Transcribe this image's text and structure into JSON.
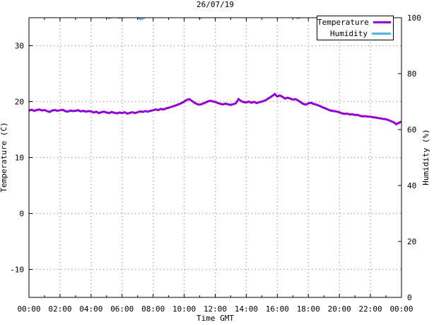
{
  "title": "26/07/19",
  "xlabel": "Time GMT",
  "ylabel_left": "Temperature (C)",
  "ylabel_right": "Humidity (%)",
  "legend": {
    "items": [
      {
        "label": "Temperature",
        "color": "#9400d3"
      },
      {
        "label": "Humidity",
        "color": "#56b4e9"
      }
    ]
  },
  "colors": {
    "temperature": "#9400d3",
    "humidity": "#56b4e9",
    "grid": "#ababab",
    "border": "#000000",
    "text": "#000000",
    "background": "#ffffff"
  },
  "chart_data": {
    "type": "line",
    "title": "26/07/19",
    "xlabel": "Time GMT",
    "x_range_hours": [
      0,
      24
    ],
    "x_major_tick_hours": 2,
    "x_minor_tick_hours": 1,
    "x_tick_labels": [
      "00:00",
      "02:00",
      "04:00",
      "06:00",
      "08:00",
      "10:00",
      "12:00",
      "14:00",
      "16:00",
      "18:00",
      "20:00",
      "22:00",
      "00:00"
    ],
    "grid": "dotted gray at x major ticks and left-axis ticks",
    "legend_position": "top-right inside plot, boxed",
    "left_axis": {
      "label": "Temperature (C)",
      "range": [
        -15,
        35
      ],
      "ticks": [
        -10,
        0,
        10,
        20,
        30
      ]
    },
    "right_axis": {
      "label": "Humidity (%)",
      "range": [
        0,
        100
      ],
      "ticks": [
        0,
        20,
        40,
        60,
        80,
        100
      ]
    },
    "series": [
      {
        "name": "Temperature",
        "axis": "left",
        "color": "#9400d3",
        "x_start_hours": 0,
        "x_step_hours": 0.166667,
        "values": [
          18.4,
          18.55,
          18.35,
          18.5,
          18.6,
          18.4,
          18.5,
          18.3,
          18.15,
          18.4,
          18.5,
          18.35,
          18.45,
          18.55,
          18.3,
          18.2,
          18.4,
          18.3,
          18.35,
          18.45,
          18.25,
          18.35,
          18.2,
          18.3,
          18.25,
          18.05,
          18.2,
          17.95,
          18.1,
          18.2,
          18.05,
          17.95,
          18.15,
          18.0,
          17.9,
          18.05,
          17.95,
          18.1,
          17.85,
          18.0,
          18.1,
          17.95,
          18.1,
          18.25,
          18.15,
          18.3,
          18.2,
          18.35,
          18.45,
          18.6,
          18.5,
          18.7,
          18.6,
          18.8,
          18.9,
          19.05,
          19.2,
          19.35,
          19.55,
          19.75,
          20.0,
          20.3,
          20.45,
          20.1,
          19.8,
          19.55,
          19.45,
          19.6,
          19.8,
          20.0,
          20.15,
          20.05,
          19.95,
          19.75,
          19.6,
          19.5,
          19.65,
          19.5,
          19.4,
          19.55,
          19.7,
          20.45,
          20.1,
          19.9,
          19.85,
          20.0,
          19.8,
          19.95,
          19.75,
          19.9,
          20.0,
          20.15,
          20.4,
          20.7,
          21.0,
          21.35,
          20.9,
          21.1,
          20.85,
          20.55,
          20.7,
          20.55,
          20.35,
          20.45,
          20.2,
          19.9,
          19.6,
          19.45,
          19.7,
          19.8,
          19.6,
          19.45,
          19.3,
          19.1,
          18.9,
          18.7,
          18.5,
          18.35,
          18.3,
          18.2,
          18.1,
          17.9,
          17.8,
          17.85,
          17.7,
          17.75,
          17.6,
          17.65,
          17.45,
          17.35,
          17.4,
          17.3,
          17.3,
          17.2,
          17.15,
          17.05,
          17.0,
          16.9,
          16.85,
          16.7,
          16.5,
          16.3,
          15.95,
          16.2,
          16.4
        ]
      },
      {
        "name": "Humidity",
        "axis": "right",
        "color": "#56b4e9",
        "x_start_hours": 0,
        "x_step_hours": 0.166667,
        "values": [
          100,
          100,
          100,
          100,
          100,
          100,
          100,
          100,
          100,
          100,
          100,
          100,
          100,
          100,
          100,
          100,
          100,
          100,
          100,
          100,
          100,
          100,
          100,
          100,
          100,
          100,
          100,
          100,
          100,
          100,
          100,
          99.6,
          100,
          100,
          100,
          99.7,
          100,
          100,
          100,
          100,
          100,
          100,
          100,
          99.2,
          99.5,
          100,
          100,
          100,
          100,
          100,
          100,
          100,
          100,
          100,
          100,
          100,
          100,
          100,
          100,
          100,
          100,
          100,
          100,
          100,
          100,
          100,
          99.7,
          100,
          100,
          100,
          100,
          100,
          100,
          100,
          100,
          100,
          100,
          100,
          100,
          100,
          100,
          100,
          100,
          100,
          100,
          100,
          100,
          100,
          100,
          100,
          100,
          100,
          100,
          100,
          100,
          100,
          100,
          100,
          100,
          100,
          100,
          100,
          100,
          100,
          99.6,
          100,
          100,
          100,
          100,
          100,
          100,
          100,
          100,
          100,
          100,
          100,
          100,
          100,
          100,
          100,
          100,
          100,
          100,
          100,
          100,
          100,
          100,
          100,
          100,
          100,
          100,
          100,
          100,
          99.7,
          100,
          100,
          100,
          100,
          100,
          100,
          100,
          100,
          100,
          100,
          100
        ]
      }
    ]
  }
}
